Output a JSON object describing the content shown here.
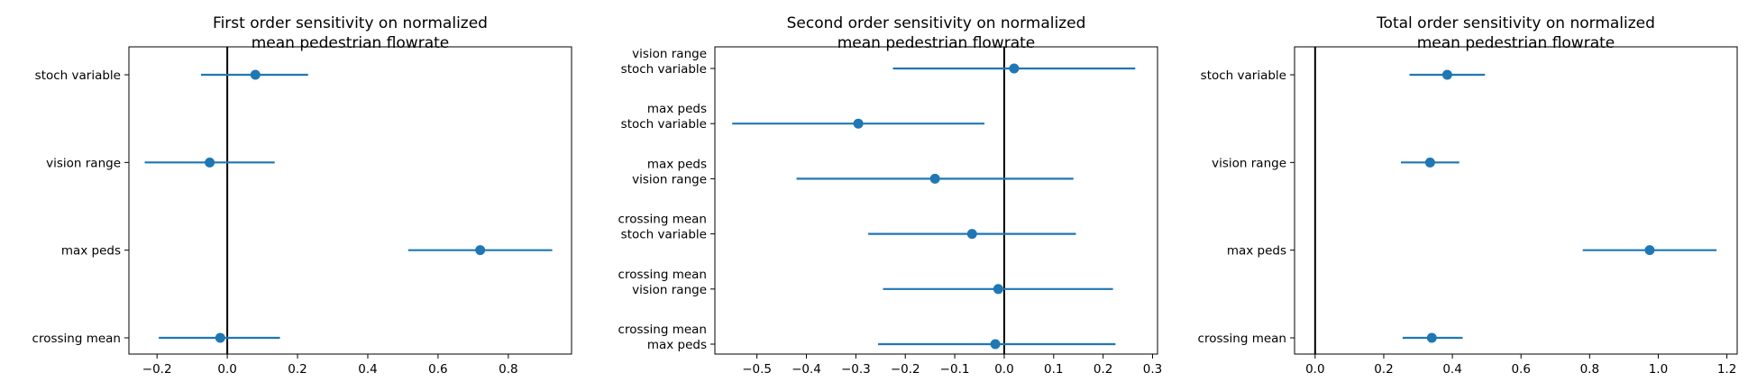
{
  "chart_data": [
    {
      "type": "scatter",
      "title": [
        "First order sensitivity on normalized",
        "mean pedestrian flowrate"
      ],
      "xlabel": "",
      "ylabel": "",
      "xlim": [
        -0.28,
        0.98
      ],
      "xticks": [
        -0.2,
        0.0,
        0.2,
        0.4,
        0.6,
        0.8
      ],
      "xtick_labels": [
        "−0.2",
        "0.0",
        "0.2",
        "0.4",
        "0.6",
        "0.8"
      ],
      "categories": [
        [
          "stoch variable"
        ],
        [
          "vision range"
        ],
        [
          "max peds"
        ],
        [
          "crossing mean"
        ]
      ],
      "values": [
        0.08,
        -0.05,
        0.72,
        -0.02
      ],
      "ci_low": [
        -0.075,
        -0.235,
        0.515,
        -0.195
      ],
      "ci_high": [
        0.23,
        0.135,
        0.925,
        0.15
      ],
      "vline": 0.0,
      "color": "#1f77b4"
    },
    {
      "type": "scatter",
      "title": [
        "Second order sensitivity on normalized",
        "mean pedestrian flowrate"
      ],
      "xlabel": "",
      "ylabel": "",
      "xlim": [
        -0.585,
        0.31
      ],
      "xticks": [
        -0.5,
        -0.4,
        -0.3,
        -0.2,
        -0.1,
        0.0,
        0.1,
        0.2,
        0.3
      ],
      "xtick_labels": [
        "−0.5",
        "−0.4",
        "−0.3",
        "−0.2",
        "−0.1",
        "0.0",
        "0.1",
        "0.2",
        "0.3"
      ],
      "categories": [
        [
          "vision range",
          "stoch variable"
        ],
        [
          "max peds",
          "stoch variable"
        ],
        [
          "max peds",
          "vision range"
        ],
        [
          "crossing mean",
          "stoch variable"
        ],
        [
          "crossing mean",
          "vision range"
        ],
        [
          "crossing mean",
          "max peds"
        ]
      ],
      "values": [
        0.02,
        -0.295,
        -0.14,
        -0.065,
        -0.012,
        -0.018
      ],
      "ci_low": [
        -0.225,
        -0.55,
        -0.42,
        -0.275,
        -0.245,
        -0.255
      ],
      "ci_high": [
        0.265,
        -0.04,
        0.14,
        0.145,
        0.22,
        0.225
      ],
      "vline": 0.0,
      "color": "#1f77b4"
    },
    {
      "type": "scatter",
      "title": [
        "Total order sensitivity on normalized",
        "mean pedestrian flowrate"
      ],
      "xlabel": "",
      "ylabel": "",
      "xlim": [
        -0.06,
        1.23
      ],
      "xticks": [
        0.0,
        0.2,
        0.4,
        0.6,
        0.8,
        1.0,
        1.2
      ],
      "xtick_labels": [
        "0.0",
        "0.2",
        "0.4",
        "0.6",
        "0.8",
        "1.0",
        "1.2"
      ],
      "categories": [
        [
          "stoch variable"
        ],
        [
          "vision range"
        ],
        [
          "max peds"
        ],
        [
          "crossing mean"
        ]
      ],
      "values": [
        0.385,
        0.335,
        0.975,
        0.34
      ],
      "ci_low": [
        0.275,
        0.25,
        0.78,
        0.255
      ],
      "ci_high": [
        0.495,
        0.42,
        1.17,
        0.43
      ],
      "vline": 0.0,
      "color": "#1f77b4"
    }
  ]
}
